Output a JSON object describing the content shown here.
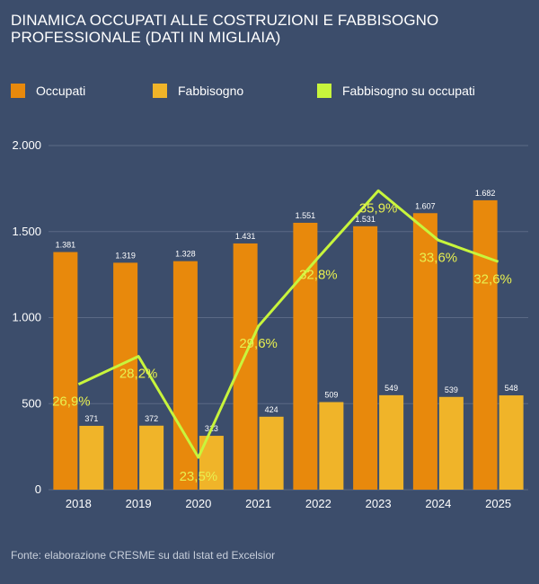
{
  "title": "DINAMICA OCCUPATI ALLE COSTRUZIONI E FABBISOGNO PROFESSIONALE (DATI IN MIGLIAIA)",
  "source": "Fonte: elaborazione CRESME su dati Istat ed Excelsior",
  "colors": {
    "background": "#3c4d6b",
    "occupati": "#e8890c",
    "fabbisogno": "#f0b429",
    "ratio": "#c8f53c",
    "ratio_label": "#e8f050",
    "grid": "#5b6a85"
  },
  "chart_data": {
    "type": "bar",
    "title": "DINAMICA OCCUPATI ALLE COSTRUZIONI E FABBISOGNO PROFESSIONALE (DATI IN MIGLIAIA)",
    "categories": [
      "2018",
      "2019",
      "2020",
      "2021",
      "2022",
      "2023",
      "2024",
      "2025"
    ],
    "series": [
      {
        "name": "Occupati",
        "kind": "bar",
        "values": [
          1381,
          1319,
          1328,
          1431,
          1551,
          1531,
          1607,
          1682
        ],
        "labels": [
          "1.381",
          "1.319",
          "1.328",
          "1.431",
          "1.551",
          "1.531",
          "1.607",
          "1.682"
        ]
      },
      {
        "name": "Fabbisogno",
        "kind": "bar",
        "values": [
          371,
          372,
          313,
          424,
          509,
          549,
          539,
          548
        ],
        "labels": [
          "371",
          "372",
          "313",
          "424",
          "509",
          "549",
          "539",
          "548"
        ]
      },
      {
        "name": "Fabbisogno su occupati",
        "kind": "line",
        "values": [
          26.9,
          28.2,
          23.5,
          29.6,
          32.8,
          35.9,
          33.6,
          32.6
        ],
        "labels": [
          "26,9%",
          "28,2%",
          "23,5%",
          "29,6%",
          "32,8%",
          "35,9%",
          "33,6%",
          "32,6%"
        ]
      }
    ],
    "ylim": [
      0,
      2000
    ],
    "yticks": [
      0,
      500,
      1000,
      1500,
      2000
    ],
    "ytick_labels": [
      "0",
      "500",
      "1.000",
      "1.500",
      "2.000"
    ],
    "ratio_range": [
      22,
      38
    ],
    "xlabel": "",
    "ylabel": "",
    "grid": true,
    "legend": "top"
  }
}
